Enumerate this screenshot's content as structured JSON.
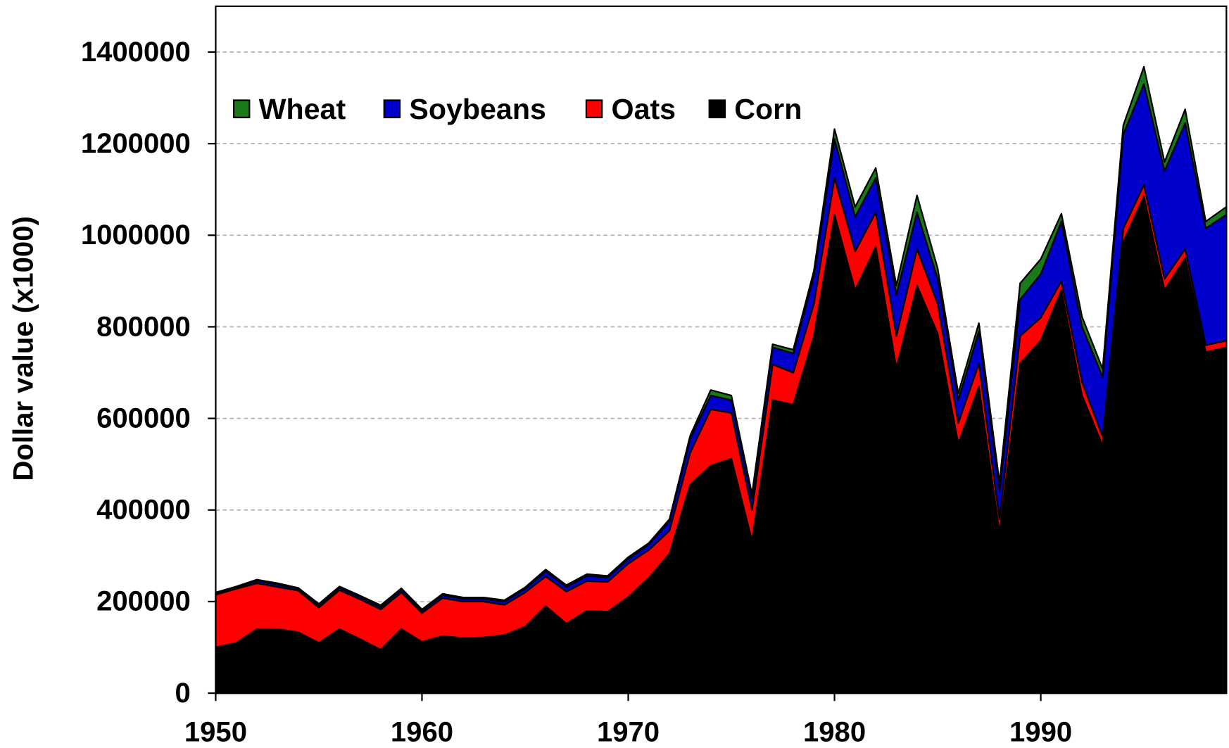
{
  "chart_data": {
    "type": "stacked_area",
    "y_label": "Dollar value (x1000)",
    "x": [
      1950,
      1951,
      1952,
      1953,
      1954,
      1955,
      1956,
      1957,
      1958,
      1959,
      1960,
      1961,
      1962,
      1963,
      1964,
      1965,
      1966,
      1967,
      1968,
      1969,
      1970,
      1971,
      1972,
      1973,
      1974,
      1975,
      1976,
      1977,
      1978,
      1979,
      1980,
      1981,
      1982,
      1983,
      1984,
      1985,
      1986,
      1987,
      1988,
      1989,
      1990,
      1991,
      1992,
      1993,
      1994,
      1995,
      1996,
      1997,
      1998,
      1999
    ],
    "series": [
      {
        "name": "Corn",
        "color": "#000000",
        "values": [
          100000,
          110000,
          140000,
          140000,
          133000,
          110000,
          140000,
          118000,
          95000,
          140000,
          112000,
          125000,
          120000,
          122000,
          127000,
          145000,
          190000,
          152000,
          180000,
          178000,
          210000,
          252000,
          305000,
          455000,
          497000,
          512000,
          333000,
          640000,
          630000,
          780000,
          1045000,
          880000,
          975000,
          710000,
          890000,
          785000,
          545000,
          670000,
          350000,
          720000,
          770000,
          880000,
          650000,
          540000,
          985000,
          1085000,
          880000,
          950000,
          745000,
          755000
        ]
      },
      {
        "name": "Oats",
        "color": "#ff0000",
        "values": [
          115000,
          118000,
          100000,
          92000,
          91000,
          77000,
          85000,
          87000,
          88000,
          80000,
          63000,
          83000,
          80000,
          78000,
          66000,
          75000,
          65000,
          70000,
          65000,
          65000,
          73000,
          61000,
          50000,
          70000,
          123000,
          100000,
          67000,
          78000,
          70000,
          70000,
          80000,
          85000,
          75000,
          70000,
          80000,
          65000,
          45000,
          50000,
          30000,
          60000,
          50000,
          20000,
          30000,
          20000,
          30000,
          25000,
          25000,
          20000,
          15000,
          15000
        ]
      },
      {
        "name": "Soybeans",
        "color": "#0000cc",
        "values": [
          3000,
          3000,
          5000,
          5000,
          4000,
          5000,
          5000,
          5000,
          5000,
          6000,
          5000,
          6000,
          6000,
          6000,
          7000,
          8000,
          11000,
          10000,
          11000,
          10000,
          10000,
          12000,
          20000,
          30000,
          30000,
          28000,
          25000,
          37000,
          42000,
          60000,
          85000,
          75000,
          75000,
          90000,
          80000,
          55000,
          50000,
          70000,
          60000,
          80000,
          95000,
          130000,
          120000,
          130000,
          205000,
          220000,
          235000,
          275000,
          255000,
          275000
        ]
      },
      {
        "name": "Wheat",
        "color": "#1a7a1a",
        "values": [
          2000,
          2000,
          3000,
          3000,
          2000,
          3000,
          3000,
          3000,
          4000,
          3000,
          3000,
          3000,
          3000,
          3000,
          3000,
          3000,
          4000,
          4000,
          4000,
          3000,
          4000,
          3000,
          5000,
          7000,
          12000,
          10000,
          10000,
          7000,
          8000,
          12000,
          22000,
          22000,
          22000,
          20000,
          37000,
          23000,
          15000,
          18000,
          20000,
          35000,
          33000,
          17000,
          22000,
          18000,
          20000,
          38000,
          20000,
          30000,
          15000,
          17000
        ]
      }
    ],
    "xlim": [
      1950,
      1999
    ],
    "xticks": [
      1950,
      1960,
      1970,
      1980,
      1990
    ],
    "ylim": [
      0,
      1500000
    ],
    "yticks": [
      0,
      200000,
      400000,
      600000,
      800000,
      1000000,
      1200000,
      1400000
    ],
    "grid": true
  }
}
